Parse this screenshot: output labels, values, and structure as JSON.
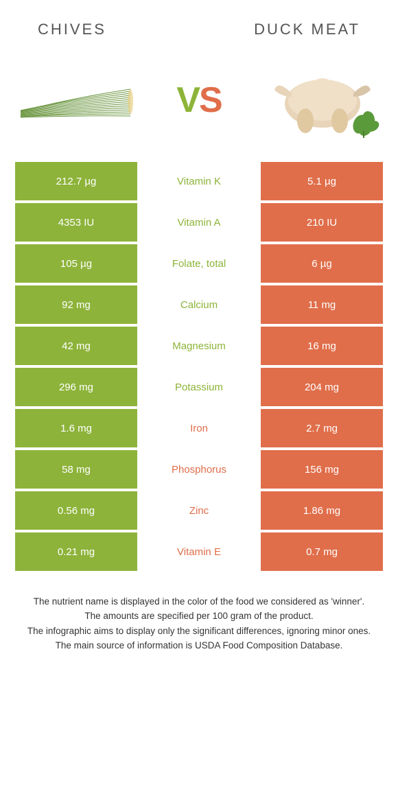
{
  "colors": {
    "green": "#8db33a",
    "orange": "#e06e4a",
    "green_text": "#8db438",
    "orange_text": "#e06e4a"
  },
  "header": {
    "left": "CHIVES",
    "right": "DUCK MEAT"
  },
  "vs": {
    "v": "V",
    "s": "S"
  },
  "rows": [
    {
      "left": "212.7 µg",
      "label": "Vitamin K",
      "right": "5.1 µg",
      "winner": "left"
    },
    {
      "left": "4353 IU",
      "label": "Vitamin A",
      "right": "210 IU",
      "winner": "left"
    },
    {
      "left": "105 µg",
      "label": "Folate, total",
      "right": "6 µg",
      "winner": "left"
    },
    {
      "left": "92 mg",
      "label": "Calcium",
      "right": "11 mg",
      "winner": "left"
    },
    {
      "left": "42 mg",
      "label": "Magnesium",
      "right": "16 mg",
      "winner": "left"
    },
    {
      "left": "296 mg",
      "label": "Potassium",
      "right": "204 mg",
      "winner": "left"
    },
    {
      "left": "1.6 mg",
      "label": "Iron",
      "right": "2.7 mg",
      "winner": "right"
    },
    {
      "left": "58 mg",
      "label": "Phosphorus",
      "right": "156 mg",
      "winner": "right"
    },
    {
      "left": "0.56 mg",
      "label": "Zinc",
      "right": "1.86 mg",
      "winner": "right"
    },
    {
      "left": "0.21 mg",
      "label": "Vitamin E",
      "right": "0.7 mg",
      "winner": "right"
    }
  ],
  "footnotes": [
    "The nutrient name is displayed in the color of the food we considered as 'winner'.",
    "The amounts are specified per 100 gram of the product.",
    "The infographic aims to display only the significant differences, ignoring minor ones.",
    "The main source of information is USDA Food Composition Database."
  ]
}
